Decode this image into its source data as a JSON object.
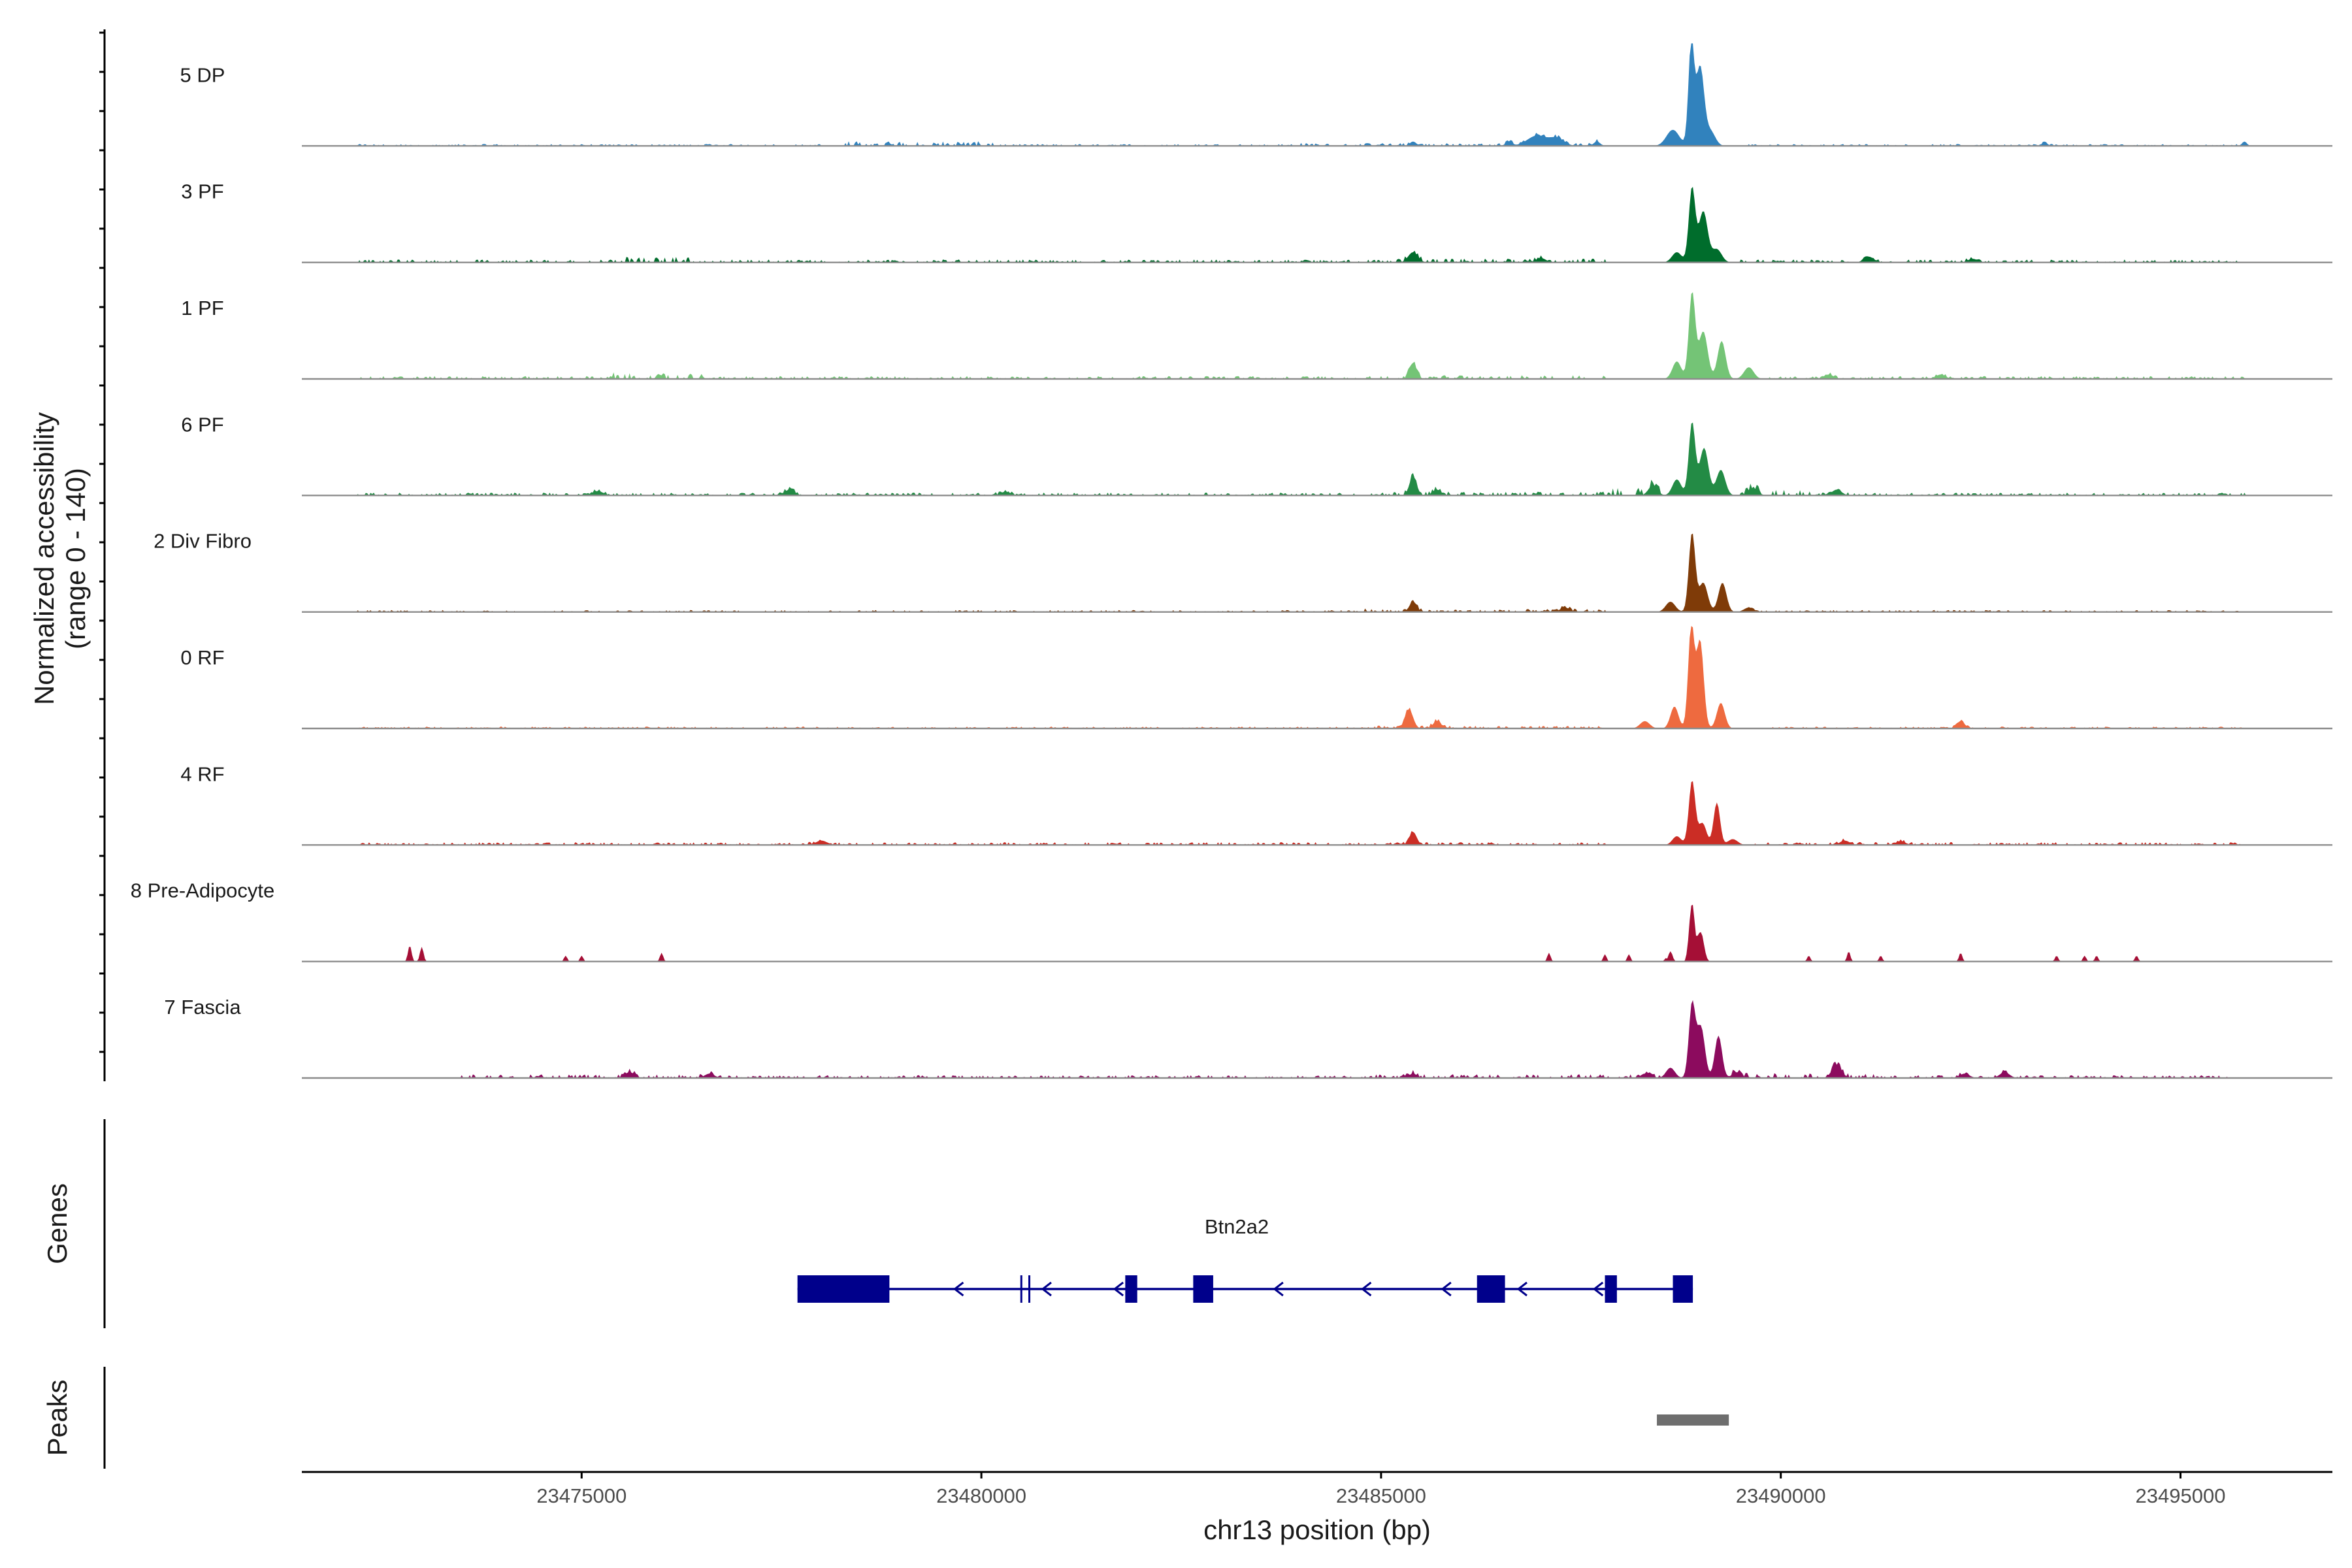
{
  "chart_data": {
    "type": "area",
    "title": "",
    "ylabel_line1": "Normalized accessibility",
    "ylabel_line2": "(range 0 - 140)",
    "yrange": [
      0,
      140
    ],
    "xlabel": "chr13 position (bp)",
    "xlim": [
      23471500,
      23496900
    ],
    "xticks": [
      23475000,
      23480000,
      23485000,
      23490000,
      23495000
    ],
    "xtick_labels": [
      "23475000",
      "23480000",
      "23485000",
      "23490000",
      "23495000"
    ],
    "genes_label": "Genes",
    "peaks_label": "Peaks",
    "series": [
      {
        "name": "5 DP",
        "color": "#3182bd",
        "noise": [
          [
            23472200,
            23478000,
            2
          ],
          [
            23478200,
            23480200,
            5
          ],
          [
            23480200,
            23484000,
            2
          ],
          [
            23484000,
            23487800,
            3
          ],
          [
            23489600,
            23495800,
            2
          ]
        ],
        "peaks": [
          [
            23485400,
            6,
            40
          ],
          [
            23486600,
            6,
            40
          ],
          [
            23486950,
            14,
            120
          ],
          [
            23487200,
            10,
            90
          ],
          [
            23487700,
            6,
            40
          ],
          [
            23488650,
            22,
            80
          ],
          [
            23488880,
            140,
            35
          ],
          [
            23488990,
            108,
            50
          ],
          [
            23489120,
            20,
            60
          ],
          [
            23493300,
            4,
            40
          ],
          [
            23495800,
            6,
            30
          ]
        ]
      },
      {
        "name": "3 PF",
        "color": "#006d2c",
        "noise": [
          [
            23472200,
            23475500,
            3
          ],
          [
            23475500,
            23476400,
            6
          ],
          [
            23476400,
            23485200,
            3
          ],
          [
            23485200,
            23487800,
            4
          ],
          [
            23489500,
            23495800,
            3
          ]
        ],
        "peaks": [
          [
            23485400,
            14,
            60
          ],
          [
            23487000,
            6,
            60
          ],
          [
            23488700,
            14,
            60
          ],
          [
            23488890,
            102,
            40
          ],
          [
            23489030,
            70,
            55
          ],
          [
            23489200,
            18,
            60
          ],
          [
            23491100,
            8,
            60
          ],
          [
            23492400,
            5,
            60
          ]
        ]
      },
      {
        "name": "1 PF",
        "color": "#74c476",
        "noise": [
          [
            23472200,
            23475400,
            3
          ],
          [
            23475400,
            23476500,
            6
          ],
          [
            23476500,
            23485000,
            3
          ],
          [
            23485000,
            23487800,
            4
          ],
          [
            23489800,
            23495800,
            3
          ]
        ],
        "peaks": [
          [
            23485400,
            22,
            45
          ],
          [
            23488700,
            24,
            55
          ],
          [
            23488890,
            118,
            40
          ],
          [
            23489030,
            65,
            55
          ],
          [
            23489260,
            52,
            50
          ],
          [
            23489600,
            16,
            60
          ],
          [
            23490600,
            6,
            60
          ],
          [
            23492000,
            6,
            60
          ]
        ]
      },
      {
        "name": "6 PF",
        "color": "#238b45",
        "noise": [
          [
            23472200,
            23484800,
            3
          ],
          [
            23484800,
            23487800,
            4
          ],
          [
            23487800,
            23488500,
            9
          ],
          [
            23489500,
            23490400,
            6
          ],
          [
            23490400,
            23495800,
            3
          ]
        ],
        "peaks": [
          [
            23475200,
            6,
            70
          ],
          [
            23477600,
            8,
            60
          ],
          [
            23480300,
            5,
            60
          ],
          [
            23485400,
            26,
            45
          ],
          [
            23485700,
            8,
            50
          ],
          [
            23488400,
            14,
            55
          ],
          [
            23488700,
            22,
            55
          ],
          [
            23488890,
            100,
            40
          ],
          [
            23489040,
            65,
            55
          ],
          [
            23489250,
            35,
            55
          ],
          [
            23489650,
            10,
            60
          ],
          [
            23490700,
            8,
            60
          ]
        ]
      },
      {
        "name": "2 Div Fibro",
        "color": "#7f3b08",
        "noise": [
          [
            23472200,
            23484800,
            2
          ],
          [
            23484800,
            23487800,
            3
          ],
          [
            23489600,
            23495800,
            2
          ]
        ],
        "peaks": [
          [
            23485400,
            14,
            45
          ],
          [
            23487300,
            6,
            60
          ],
          [
            23488620,
            14,
            60
          ],
          [
            23488890,
            108,
            40
          ],
          [
            23489030,
            40,
            55
          ],
          [
            23489270,
            40,
            50
          ],
          [
            23489600,
            6,
            60
          ]
        ]
      },
      {
        "name": "0 RF",
        "color": "#ee6a3f",
        "noise": [
          [
            23472200,
            23484800,
            2
          ],
          [
            23484800,
            23487800,
            3
          ],
          [
            23489700,
            23495800,
            2
          ]
        ],
        "peaks": [
          [
            23485350,
            26,
            50
          ],
          [
            23485700,
            10,
            50
          ],
          [
            23488300,
            10,
            60
          ],
          [
            23488670,
            30,
            50
          ],
          [
            23488880,
            140,
            38
          ],
          [
            23488990,
            120,
            45
          ],
          [
            23489250,
            35,
            50
          ],
          [
            23492250,
            10,
            50
          ]
        ]
      },
      {
        "name": "4 RF",
        "color": "#cb2d25",
        "noise": [
          [
            23472200,
            23484800,
            3
          ],
          [
            23484800,
            23487800,
            3
          ],
          [
            23489600,
            23495800,
            3
          ]
        ],
        "peaks": [
          [
            23478000,
            6,
            70
          ],
          [
            23485400,
            18,
            45
          ],
          [
            23488700,
            12,
            55
          ],
          [
            23488890,
            88,
            40
          ],
          [
            23489020,
            30,
            50
          ],
          [
            23489200,
            58,
            40
          ],
          [
            23489400,
            8,
            60
          ],
          [
            23490800,
            6,
            60
          ],
          [
            23491500,
            5,
            60
          ]
        ]
      },
      {
        "name": "8 Pre-Adipocyte",
        "color": "#a50f36",
        "noise": [
          [
            23488500,
            23489000,
            4
          ]
        ],
        "peaks": [
          [
            23472850,
            22,
            22
          ],
          [
            23473000,
            20,
            22
          ],
          [
            23474800,
            8,
            20
          ],
          [
            23475000,
            8,
            20
          ],
          [
            23476000,
            12,
            20
          ],
          [
            23487100,
            12,
            20
          ],
          [
            23487800,
            10,
            20
          ],
          [
            23488100,
            10,
            20
          ],
          [
            23488620,
            14,
            25
          ],
          [
            23488890,
            80,
            32
          ],
          [
            23489000,
            40,
            38
          ],
          [
            23490350,
            8,
            20
          ],
          [
            23490850,
            14,
            20
          ],
          [
            23491250,
            8,
            20
          ],
          [
            23492250,
            12,
            20
          ],
          [
            23493450,
            8,
            20
          ],
          [
            23493800,
            8,
            20
          ],
          [
            23493950,
            8,
            20
          ],
          [
            23494450,
            8,
            20
          ]
        ]
      },
      {
        "name": "7 Fascia",
        "color": "#8c0b5e",
        "noise": [
          [
            23473500,
            23476500,
            4
          ],
          [
            23476500,
            23484800,
            3
          ],
          [
            23484800,
            23487800,
            4
          ],
          [
            23487800,
            23488500,
            4
          ],
          [
            23489400,
            23491200,
            5
          ],
          [
            23491200,
            23495600,
            3
          ]
        ],
        "peaks": [
          [
            23475600,
            8,
            60
          ],
          [
            23476600,
            6,
            60
          ],
          [
            23485400,
            6,
            50
          ],
          [
            23488300,
            6,
            50
          ],
          [
            23488620,
            14,
            55
          ],
          [
            23488890,
            100,
            40
          ],
          [
            23489000,
            70,
            50
          ],
          [
            23489220,
            58,
            45
          ],
          [
            23489450,
            8,
            55
          ],
          [
            23490700,
            18,
            60
          ],
          [
            23492300,
            6,
            60
          ],
          [
            23492800,
            8,
            60
          ]
        ]
      }
    ],
    "gene": {
      "name": "Btn2a2",
      "strand": "-",
      "start": 23477700,
      "end": 23488900,
      "color": "#00008b",
      "utr": [
        [
          23477700,
          23478850
        ]
      ],
      "exons": [
        [
          23481800,
          23481950
        ],
        [
          23482650,
          23482900
        ],
        [
          23486200,
          23486550
        ],
        [
          23487800,
          23487950
        ],
        [
          23488650,
          23488900
        ]
      ],
      "small_exons": [
        23480500,
        23480600
      ],
      "arrows": [
        23479700,
        23480800,
        23481700,
        23483700,
        23484800,
        23485800,
        23486750,
        23487700
      ]
    },
    "peak_regions": [
      [
        23488450,
        23489350
      ]
    ],
    "peak_color": "#6e6e6e"
  }
}
